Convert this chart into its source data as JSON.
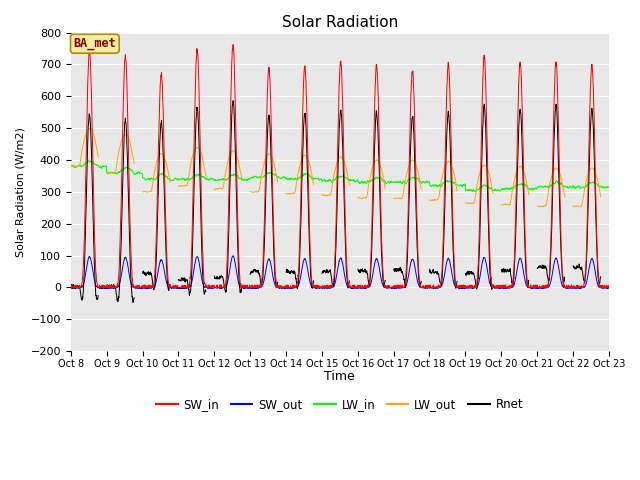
{
  "title": "Solar Radiation",
  "ylabel": "Solar Radiation (W/m2)",
  "xlabel": "Time",
  "annotation": "BA_met",
  "ylim": [
    -200,
    800
  ],
  "yticks": [
    -200,
    -100,
    0,
    100,
    200,
    300,
    400,
    500,
    600,
    700,
    800
  ],
  "xtick_labels": [
    "Oct 8",
    "Oct 9",
    "Oct 10",
    "Oct 11",
    "Oct 12",
    "Oct 13",
    "Oct 14",
    "Oct 15",
    "Oct 16",
    "Oct 17",
    "Oct 18",
    "Oct 19",
    "Oct 20",
    "Oct 21",
    "Oct 22",
    "Oct 23"
  ],
  "colors": {
    "SW_in": "#ff0000",
    "SW_out": "#0000ff",
    "LW_in": "#00ff00",
    "LW_out": "#ffa500",
    "Rnet": "#000000"
  },
  "plot_bg": "#e8e8e8",
  "title_fontsize": 11,
  "legend_labels": [
    "SW_in",
    "SW_out",
    "LW_in",
    "LW_out",
    "Rnet"
  ]
}
